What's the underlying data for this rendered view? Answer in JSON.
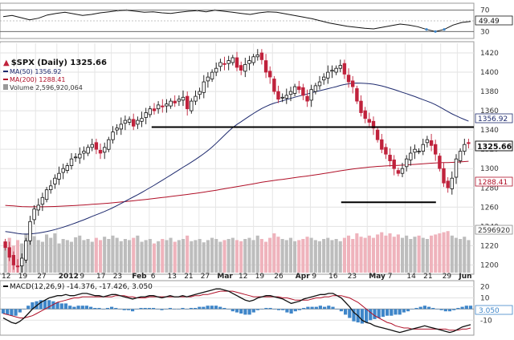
{
  "chart_data": {
    "type": "candlestick",
    "symbol_label": "$SPX (Daily) 1325.66",
    "rsi": {
      "levels": [
        70,
        50,
        30
      ],
      "current": 49.49,
      "current_label": "49.49",
      "values": [
        58,
        60,
        56,
        52,
        55,
        61,
        64,
        66,
        63,
        60,
        62,
        65,
        67,
        69,
        70,
        68,
        66,
        67,
        65,
        64,
        66,
        68,
        69,
        67,
        70,
        68,
        66,
        64,
        62,
        65,
        67,
        66,
        63,
        60,
        57,
        54,
        50,
        46,
        43,
        40,
        38,
        36,
        35,
        38,
        41,
        44,
        42,
        39,
        34,
        30,
        34,
        42,
        47,
        49
      ]
    },
    "price": {
      "title": "$SPX (Daily) 1325.66",
      "last": 1325.66,
      "last_label": "1325.66",
      "ma50": {
        "label": "MA(50) 1356.92",
        "value_label": "1356.92",
        "color": "#1e2a6e"
      },
      "ma200": {
        "label": "MA(200) 1288.41",
        "value_label": "1288.41",
        "color": "#b01028"
      },
      "volume": {
        "label": "Volume 2,596,920,064",
        "value_label": "2596920"
      },
      "yticks": [
        1420,
        1400,
        1380,
        1360,
        1340,
        1320,
        1300,
        1280,
        1260,
        1240,
        1220,
        1200
      ],
      "ylim": [
        1192,
        1430
      ],
      "horizontal_lines": [
        {
          "value": 1343,
          "from": 0.32,
          "to": 1.0
        },
        {
          "value": 1265,
          "from": 0.72,
          "to": 0.92
        }
      ],
      "closes": [
        1218,
        1208,
        1200,
        1198,
        1207,
        1225,
        1245,
        1258,
        1262,
        1270,
        1278,
        1282,
        1290,
        1295,
        1300,
        1303,
        1310,
        1312,
        1315,
        1318,
        1322,
        1325,
        1320,
        1316,
        1322,
        1330,
        1338,
        1342,
        1346,
        1350,
        1351,
        1344,
        1350,
        1352,
        1358,
        1362,
        1360,
        1366,
        1364,
        1367,
        1370,
        1368,
        1372,
        1374,
        1362,
        1370,
        1375,
        1380,
        1390,
        1395,
        1400,
        1404,
        1410,
        1408,
        1412,
        1415,
        1405,
        1402,
        1408,
        1412,
        1416,
        1418,
        1413,
        1400,
        1395,
        1380,
        1372,
        1374,
        1376,
        1380,
        1385,
        1382,
        1376,
        1370,
        1382,
        1386,
        1390,
        1395,
        1400,
        1402,
        1404,
        1407,
        1398,
        1390,
        1385,
        1370,
        1358,
        1352,
        1348,
        1342,
        1330,
        1320,
        1315,
        1308,
        1300,
        1295,
        1300,
        1310,
        1316,
        1320,
        1318,
        1325,
        1330,
        1324,
        1315,
        1300,
        1285,
        1280,
        1290,
        1310,
        1318,
        1325,
        1326
      ]
    },
    "volume_values": [
      0.55,
      0.62,
      0.48,
      0.58,
      0.52,
      0.7,
      0.6,
      0.65,
      0.58,
      0.55,
      0.68,
      0.62,
      0.7,
      0.52,
      0.6,
      0.58,
      0.55,
      0.63,
      0.66,
      0.58,
      0.6,
      0.55,
      0.62,
      0.58,
      0.64,
      0.6,
      0.66,
      0.62,
      0.56,
      0.6,
      0.58,
      0.62,
      0.66,
      0.55,
      0.58,
      0.6,
      0.52,
      0.56,
      0.6,
      0.58,
      0.62,
      0.55,
      0.58,
      0.6,
      0.66,
      0.56,
      0.58,
      0.6,
      0.54,
      0.58,
      0.62,
      0.6,
      0.55,
      0.58,
      0.6,
      0.62,
      0.58,
      0.56,
      0.6,
      0.62,
      0.58,
      0.66,
      0.6,
      0.55,
      0.62,
      0.7,
      0.64,
      0.6,
      0.58,
      0.62,
      0.56,
      0.58,
      0.6,
      0.64,
      0.62,
      0.58,
      0.56,
      0.6,
      0.62,
      0.58,
      0.6,
      0.56,
      0.62,
      0.66,
      0.6,
      0.7,
      0.64,
      0.62,
      0.66,
      0.62,
      0.68,
      0.72,
      0.66,
      0.7,
      0.64,
      0.68,
      0.62,
      0.66,
      0.6,
      0.64,
      0.66,
      0.62,
      0.6,
      0.66,
      0.68,
      0.7,
      0.72,
      0.74,
      0.66,
      0.62,
      0.6,
      0.64,
      0.58
    ],
    "macd": {
      "label": "MACD(12,26,9) -14.376, -17.426, 3.050",
      "macd_value": "-14.376",
      "signal_value": "-17.426",
      "hist_value": "3.050",
      "hist_label": "3.050",
      "yticks": [
        20,
        10,
        0,
        -10
      ],
      "ylim": [
        -22,
        24
      ],
      "macd_line": [
        -8,
        -10,
        -12,
        -13,
        -11,
        -8,
        -4,
        0,
        3,
        6,
        8,
        10,
        11,
        12,
        12,
        13,
        12,
        12,
        13,
        14,
        14,
        13,
        12,
        12,
        11,
        12,
        13,
        13,
        12,
        11,
        10,
        9,
        10,
        11,
        11,
        12,
        12,
        11,
        10,
        11,
        12,
        11,
        11,
        12,
        11,
        12,
        13,
        14,
        15,
        16,
        17,
        18,
        18,
        17,
        16,
        14,
        12,
        10,
        8,
        7,
        8,
        10,
        11,
        12,
        12,
        11,
        10,
        9,
        7,
        5,
        6,
        7,
        9,
        10,
        11,
        12,
        13,
        13,
        14,
        14,
        12,
        10,
        6,
        2,
        -3,
        -6,
        -10,
        -12,
        -13,
        -15,
        -16,
        -17,
        -18,
        -19,
        -20,
        -21,
        -20,
        -19,
        -18,
        -17,
        -16,
        -15,
        -16,
        -17,
        -18,
        -19,
        -20,
        -21,
        -20,
        -18,
        -16,
        -15,
        -14
      ],
      "signal_line": [
        -4,
        -5,
        -6,
        -7,
        -8,
        -8,
        -7,
        -6,
        -4,
        -2,
        0,
        2,
        4,
        6,
        7,
        8,
        9,
        10,
        10,
        11,
        11,
        11,
        11,
        11,
        11,
        11,
        11,
        12,
        12,
        12,
        11,
        11,
        10,
        10,
        10,
        11,
        11,
        11,
        11,
        11,
        11,
        11,
        11,
        11,
        11,
        11,
        12,
        12,
        13,
        13,
        14,
        15,
        16,
        16,
        16,
        16,
        15,
        14,
        13,
        12,
        11,
        11,
        11,
        11,
        11,
        11,
        11,
        10,
        10,
        9,
        8,
        8,
        8,
        8,
        9,
        10,
        10,
        11,
        11,
        12,
        12,
        12,
        11,
        10,
        8,
        6,
        3,
        0,
        -3,
        -6,
        -8,
        -10,
        -12,
        -13,
        -15,
        -16,
        -17,
        -17,
        -18,
        -18,
        -18,
        -18,
        -18,
        -18,
        -18,
        -18,
        -18,
        -19,
        -19,
        -19,
        -18,
        -18,
        -17
      ]
    },
    "x_labels": [
      {
        "text": "12",
        "pos": 0.0
      },
      {
        "text": "19",
        "pos": 0.035
      },
      {
        "text": "27",
        "pos": 0.075
      },
      {
        "text": "2012",
        "pos": 0.12,
        "bold": true
      },
      {
        "text": "9",
        "pos": 0.165
      },
      {
        "text": "17",
        "pos": 0.2
      },
      {
        "text": "23",
        "pos": 0.235
      },
      {
        "text": "Feb",
        "pos": 0.275,
        "bold": true
      },
      {
        "text": "6",
        "pos": 0.315
      },
      {
        "text": "13",
        "pos": 0.35
      },
      {
        "text": "21",
        "pos": 0.385
      },
      {
        "text": "27",
        "pos": 0.42
      },
      {
        "text": "Mar",
        "pos": 0.455,
        "bold": true
      },
      {
        "text": "12",
        "pos": 0.5
      },
      {
        "text": "19",
        "pos": 0.535
      },
      {
        "text": "26",
        "pos": 0.575
      },
      {
        "text": "Apr",
        "pos": 0.62,
        "bold": true
      },
      {
        "text": "9",
        "pos": 0.655
      },
      {
        "text": "16",
        "pos": 0.69
      },
      {
        "text": "23",
        "pos": 0.73
      },
      {
        "text": "May",
        "pos": 0.775,
        "bold": true
      },
      {
        "text": "7",
        "pos": 0.815
      },
      {
        "text": "14",
        "pos": 0.855
      },
      {
        "text": "21",
        "pos": 0.89
      },
      {
        "text": "29",
        "pos": 0.93
      },
      {
        "text": "Jun",
        "pos": 0.965,
        "bold": true
      }
    ],
    "colors": {
      "up": "#111111",
      "down": "#c0223c",
      "volume_up": "#bdbdbd",
      "volume_down": "#efb3bc",
      "macd": "#111111",
      "signal": "#b01028",
      "hist": "#3f86c9"
    }
  }
}
